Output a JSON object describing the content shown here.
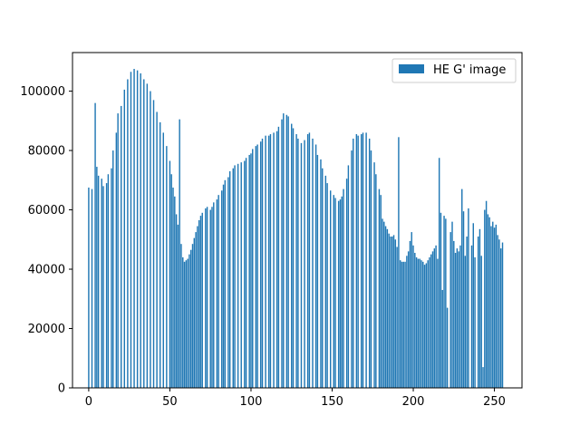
{
  "chart_data": {
    "type": "bar",
    "legend": {
      "label": "HE G' image",
      "placement": "top-right"
    },
    "colors": {
      "bar": "#1f77b4",
      "axis": "#000000",
      "background": "#ffffff"
    },
    "grid": false,
    "xlim": [
      -10,
      267
    ],
    "ylim": [
      0,
      113000
    ],
    "xticks": [
      0,
      50,
      100,
      150,
      200,
      250
    ],
    "xtick_labels": [
      "0",
      "50",
      "100",
      "150",
      "200",
      "250"
    ],
    "yticks": [
      0,
      20000,
      40000,
      60000,
      80000,
      100000
    ],
    "ytick_labels": [
      "0",
      "20000",
      "40000",
      "60000",
      "80000",
      "100000"
    ],
    "series": [
      {
        "values": [
          67500,
          0,
          67000,
          0,
          96000,
          74500,
          71500,
          0,
          70500,
          68000,
          0,
          69000,
          72000,
          0,
          74000,
          80000,
          0,
          86000,
          92500,
          0,
          95000,
          0,
          100500,
          0,
          104000,
          0,
          106500,
          0,
          107500,
          0,
          107000,
          0,
          106000,
          0,
          104000,
          0,
          102500,
          0,
          100000,
          0,
          97000,
          0,
          93000,
          0,
          89500,
          0,
          86000,
          0,
          81500,
          0,
          76500,
          72000,
          67500,
          64500,
          58500,
          55000,
          90500,
          48500,
          44000,
          42500,
          43000,
          43500,
          45000,
          46500,
          48500,
          50500,
          52500,
          54500,
          56500,
          58000,
          59000,
          0,
          60500,
          61000,
          0,
          60000,
          61000,
          62500,
          0,
          63500,
          65000,
          0,
          66500,
          68500,
          70000,
          0,
          71000,
          73000,
          0,
          74000,
          75000,
          0,
          75500,
          0,
          76000,
          0,
          76500,
          77500,
          0,
          78500,
          79000,
          80500,
          0,
          81500,
          82000,
          0,
          83000,
          84000,
          0,
          85000,
          0,
          85000,
          85500,
          0,
          86000,
          0,
          86500,
          88000,
          0,
          90500,
          92500,
          0,
          92000,
          91500,
          0,
          89000,
          87500,
          0,
          85500,
          84000,
          0,
          82500,
          0,
          83500,
          0,
          85500,
          86000,
          0,
          84000,
          0,
          82000,
          78500,
          0,
          77000,
          74000,
          0,
          71500,
          69000,
          0,
          66500,
          0,
          65000,
          64000,
          0,
          63000,
          63500,
          64500,
          67000,
          0,
          70500,
          75000,
          0,
          80000,
          84000,
          0,
          85500,
          85000,
          0,
          85500,
          86000,
          0,
          86000,
          0,
          84000,
          80000,
          0,
          76000,
          72000,
          0,
          67000,
          65000,
          57000,
          56000,
          54500,
          53500,
          52000,
          51000,
          51000,
          51500,
          50000,
          47500,
          84500,
          43000,
          42500,
          42500,
          42500,
          44500,
          46000,
          49500,
          52500,
          48000,
          43500,
          77500,
          59000,
          33000,
          58000,
          57000,
          27000,
          0,
          52500,
          56000,
          49500,
          45500,
          47000,
          46000,
          48000,
          67000,
          59500,
          44500,
          51000,
          60500,
          0,
          48000,
          55500,
          44000,
          0,
          51000,
          53500,
          44500,
          7000,
          60000,
          63000,
          58500,
          57500,
          54500,
          56000,
          54000,
          55000,
          51500,
          50000,
          47000,
          45500,
          44000,
          43500,
          43500,
          43000,
          42500,
          41500,
          42000,
          43000,
          44000,
          45000,
          46000,
          47000,
          48000,
          49000
        ],
        "x": [
          0,
          1,
          2,
          3,
          4,
          5,
          6,
          7,
          8,
          9,
          10,
          11,
          12,
          13,
          14,
          15,
          16,
          17,
          18,
          19,
          20,
          21,
          22,
          23,
          24,
          25,
          26,
          27,
          28,
          29,
          30,
          31,
          32,
          33,
          34,
          35,
          36,
          37,
          38,
          39,
          40,
          41,
          42,
          43,
          44,
          45,
          46,
          47,
          48,
          49,
          50,
          51,
          52,
          53,
          54,
          55,
          56,
          57,
          58,
          59,
          60,
          61,
          62,
          63,
          64,
          65,
          66,
          67,
          68,
          69,
          70,
          71,
          72,
          73,
          74,
          75,
          76,
          77,
          78,
          79,
          80,
          81,
          82,
          83,
          84,
          85,
          86,
          87,
          88,
          89,
          90,
          91,
          92,
          93,
          94,
          95,
          96,
          97,
          98,
          99,
          100,
          101,
          102,
          103,
          104,
          105,
          106,
          107,
          108,
          109,
          110,
          111,
          112,
          113,
          114,
          115,
          116,
          117,
          118,
          119,
          120,
          121,
          122,
          123,
          124,
          125,
          126,
          127,
          128,
          129,
          130,
          131,
          132,
          133,
          134,
          135,
          136,
          137,
          138,
          139,
          140,
          141,
          142,
          143,
          144,
          145,
          146,
          147,
          148,
          149,
          150,
          151,
          152,
          153,
          154,
          155,
          156,
          157,
          158,
          159,
          160,
          161,
          162,
          163,
          164,
          165,
          166,
          167,
          168,
          169,
          170,
          171,
          172,
          173,
          174,
          175,
          176,
          177,
          178,
          179,
          180,
          181,
          182,
          183,
          184,
          185,
          186,
          187,
          188,
          189,
          190,
          191,
          192,
          193,
          194,
          195,
          196,
          197,
          198,
          199,
          200,
          215,
          216,
          217,
          218,
          219,
          220,
          221,
          222,
          223,
          224,
          225,
          226,
          227,
          228,
          229,
          230,
          231,
          232,
          233,
          234,
          235,
          236,
          237,
          238,
          239,
          240,
          241,
          242,
          243,
          244,
          245,
          246,
          247,
          248,
          249,
          250,
          251,
          252,
          253,
          254,
          201,
          202,
          203,
          204,
          205,
          206,
          207,
          208,
          209,
          210,
          211,
          212,
          213,
          214,
          255
        ]
      }
    ]
  }
}
